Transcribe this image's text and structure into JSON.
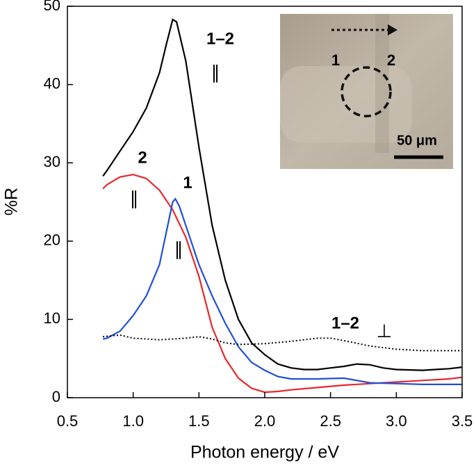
{
  "chart_data": {
    "type": "line",
    "x_label": "Photon energy / eV",
    "y_label": "%R",
    "xlim": [
      0.5,
      3.5
    ],
    "ylim": [
      0,
      50
    ],
    "xticks": [
      {
        "value": 0.5,
        "label": "0.5"
      },
      {
        "value": 1,
        "label": "1.0"
      },
      {
        "value": 1.5,
        "label": "1.5"
      },
      {
        "value": 2,
        "label": "2.0"
      },
      {
        "value": 2.5,
        "label": "2.5"
      },
      {
        "value": 3,
        "label": "3.0"
      },
      {
        "value": 3.5,
        "label": "3.5"
      }
    ],
    "yticks": [
      0,
      10,
      20,
      30,
      40,
      50
    ],
    "series": [
      {
        "name": "1–2",
        "symbol": "∥",
        "color": "#000000",
        "linestyle": "solid",
        "x": [
          0.77,
          0.8,
          0.9,
          1.0,
          1.1,
          1.2,
          1.25,
          1.3,
          1.33,
          1.4,
          1.5,
          1.6,
          1.7,
          1.8,
          1.9,
          2.0,
          2.1,
          2.2,
          2.3,
          2.4,
          2.5,
          2.6,
          2.7,
          2.8,
          2.9,
          3.0,
          3.2,
          3.4,
          3.5
        ],
        "values": [
          28.3,
          29,
          31.5,
          34,
          37,
          41.5,
          45,
          48.3,
          48,
          43,
          32,
          22,
          15,
          10,
          7,
          5.5,
          4.3,
          3.8,
          3.6,
          3.6,
          3.8,
          4,
          4.3,
          4.2,
          3.8,
          3.6,
          3.5,
          3.7,
          3.9
        ]
      },
      {
        "name": "2",
        "symbol": "∥",
        "color": "#e8262a",
        "linestyle": "solid",
        "x": [
          0.77,
          0.8,
          0.9,
          1.0,
          1.1,
          1.2,
          1.3,
          1.4,
          1.5,
          1.6,
          1.7,
          1.8,
          1.9,
          2.0,
          2.1,
          2.2,
          2.4,
          2.6,
          2.8,
          3.0,
          3.2,
          3.4,
          3.5
        ],
        "values": [
          26.7,
          27.2,
          28.2,
          28.5,
          28,
          26.5,
          24,
          20.5,
          15.5,
          9,
          5,
          2.5,
          1.2,
          0.7,
          0.8,
          1,
          1.3,
          1.6,
          1.8,
          2,
          2.2,
          2.4,
          2.6
        ]
      },
      {
        "name": "1",
        "symbol": "∥",
        "color": "#1f4fd8",
        "linestyle": "solid",
        "x": [
          0.77,
          0.8,
          0.9,
          1.0,
          1.1,
          1.2,
          1.25,
          1.3,
          1.32,
          1.35,
          1.4,
          1.5,
          1.6,
          1.7,
          1.8,
          1.9,
          2.0,
          2.1,
          2.2,
          2.4,
          2.6,
          2.7,
          2.8,
          3.0,
          3.2,
          3.5
        ],
        "values": [
          7.5,
          7.6,
          8.5,
          10.5,
          13,
          17,
          21,
          25,
          25.4,
          24.5,
          22,
          17,
          13,
          9.5,
          6.5,
          4.5,
          3.5,
          2.7,
          2.4,
          2.4,
          2.5,
          2.2,
          1.9,
          1.8,
          1.7,
          1.7
        ]
      },
      {
        "name": "1–2",
        "symbol": "⊥",
        "color": "#000000",
        "linestyle": "dotted",
        "x": [
          0.77,
          0.9,
          1.0,
          1.2,
          1.4,
          1.5,
          1.6,
          1.7,
          1.8,
          2.0,
          2.2,
          2.4,
          2.5,
          2.6,
          2.8,
          3.0,
          3.2,
          3.5
        ],
        "values": [
          7.8,
          8,
          7.6,
          7.4,
          7.6,
          7.8,
          7.5,
          7,
          6.8,
          6.9,
          7.2,
          7.6,
          7.6,
          7.3,
          6.6,
          6.2,
          6,
          6
        ]
      }
    ],
    "inset": {
      "label_left": "1",
      "label_right": "2",
      "scale_bar": "50 μm"
    }
  }
}
